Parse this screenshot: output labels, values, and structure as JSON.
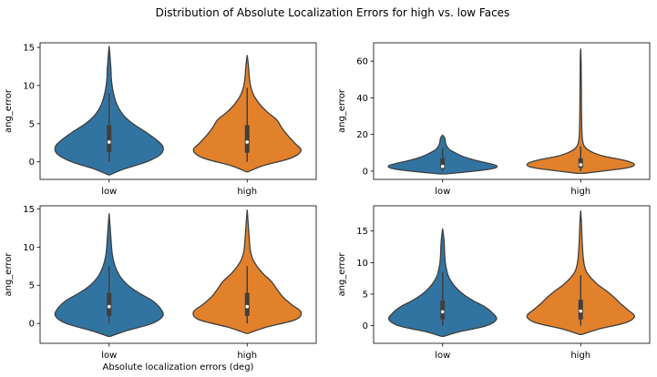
{
  "figure": {
    "suptitle": "Distribution of Absolute Localization Errors for high vs. low Faces"
  },
  "colors": {
    "low": "#3274a1",
    "high": "#e1812c",
    "edge": "#3f3f3f",
    "box": "#3f3f3f",
    "median": "#ffffff"
  },
  "chart_data": [
    {
      "type": "violin",
      "categories": [
        "low",
        "high"
      ],
      "xlabel": "",
      "ylabel": "ang_error",
      "ylim": [
        -2.3,
        15.6
      ],
      "yticks": [
        0,
        5,
        10,
        15
      ],
      "violins": [
        {
          "category": "low",
          "min": -1.7,
          "max": 15.0,
          "q1": 1.3,
          "median": 2.6,
          "q3": 4.8,
          "whisker_low": 0.0,
          "whisker_high": 9.0,
          "density": [
            [
              -1.7,
              0.02
            ],
            [
              -1.0,
              0.25
            ],
            [
              0.0,
              0.7
            ],
            [
              1.0,
              0.96
            ],
            [
              2.0,
              1.0
            ],
            [
              3.0,
              0.86
            ],
            [
              4.0,
              0.66
            ],
            [
              5.0,
              0.44
            ],
            [
              6.0,
              0.28
            ],
            [
              7.0,
              0.18
            ],
            [
              8.0,
              0.12
            ],
            [
              9.0,
              0.08
            ],
            [
              10.0,
              0.055
            ],
            [
              11.0,
              0.04
            ],
            [
              12.0,
              0.035
            ],
            [
              13.0,
              0.025
            ],
            [
              14.0,
              0.015
            ],
            [
              15.0,
              0.002
            ]
          ]
        },
        {
          "category": "high",
          "min": -1.3,
          "max": 13.8,
          "q1": 1.2,
          "median": 2.6,
          "q3": 4.8,
          "whisker_low": 0.0,
          "whisker_high": 9.7,
          "density": [
            [
              -1.3,
              0.02
            ],
            [
              -0.5,
              0.3
            ],
            [
              0.5,
              0.82
            ],
            [
              1.5,
              1.0
            ],
            [
              2.5,
              0.88
            ],
            [
              3.5,
              0.75
            ],
            [
              4.5,
              0.64
            ],
            [
              5.5,
              0.55
            ],
            [
              6.5,
              0.38
            ],
            [
              7.5,
              0.24
            ],
            [
              8.5,
              0.14
            ],
            [
              9.5,
              0.08
            ],
            [
              10.5,
              0.05
            ],
            [
              11.5,
              0.035
            ],
            [
              12.5,
              0.025
            ],
            [
              13.8,
              0.003
            ]
          ]
        }
      ]
    },
    {
      "type": "violin",
      "categories": [
        "low",
        "high"
      ],
      "xlabel": "",
      "ylabel": "ang_error",
      "ylim": [
        -4.5,
        70
      ],
      "yticks": [
        0,
        20,
        40,
        60
      ],
      "violins": [
        {
          "category": "low",
          "min": -1.5,
          "max": 19.5,
          "q1": 1.2,
          "median": 2.6,
          "q3": 7.0,
          "whisker_low": 0.0,
          "whisker_high": 13.0,
          "density": [
            [
              -1.5,
              0.05
            ],
            [
              0.0,
              0.6
            ],
            [
              1.5,
              0.95
            ],
            [
              3.0,
              1.0
            ],
            [
              4.5,
              0.82
            ],
            [
              6.0,
              0.6
            ],
            [
              7.5,
              0.42
            ],
            [
              9.0,
              0.3
            ],
            [
              10.5,
              0.2
            ],
            [
              12.0,
              0.12
            ],
            [
              14.0,
              0.07
            ],
            [
              16.0,
              0.05
            ],
            [
              18.0,
              0.04
            ],
            [
              19.5,
              0.005
            ]
          ]
        },
        {
          "category": "high",
          "min": -1.2,
          "max": 65.5,
          "q1": 1.8,
          "median": 3.5,
          "q3": 7.0,
          "whisker_low": 0.0,
          "whisker_high": 13.5,
          "density": [
            [
              -1.2,
              0.05
            ],
            [
              0.5,
              0.55
            ],
            [
              2.0,
              0.9
            ],
            [
              3.5,
              1.0
            ],
            [
              5.0,
              0.92
            ],
            [
              6.5,
              0.72
            ],
            [
              8.0,
              0.45
            ],
            [
              10.0,
              0.24
            ],
            [
              12.0,
              0.12
            ],
            [
              14.0,
              0.06
            ],
            [
              18.0,
              0.03
            ],
            [
              25.0,
              0.02
            ],
            [
              35.0,
              0.015
            ],
            [
              45.0,
              0.012
            ],
            [
              55.0,
              0.01
            ],
            [
              65.5,
              0.003
            ]
          ]
        }
      ]
    },
    {
      "type": "violin",
      "categories": [
        "low",
        "high"
      ],
      "xlabel": "Absolute localization errors (deg)",
      "ylabel": "ang_error",
      "ylim": [
        -2.6,
        15.4
      ],
      "yticks": [
        0,
        5,
        10,
        15
      ],
      "violins": [
        {
          "category": "low",
          "min": -1.7,
          "max": 14.2,
          "q1": 1.0,
          "median": 2.2,
          "q3": 4.0,
          "whisker_low": 0.0,
          "whisker_high": 7.5,
          "density": [
            [
              -1.7,
              0.02
            ],
            [
              -1.0,
              0.3
            ],
            [
              0.0,
              0.8
            ],
            [
              1.0,
              1.0
            ],
            [
              2.0,
              0.95
            ],
            [
              3.0,
              0.8
            ],
            [
              4.0,
              0.55
            ],
            [
              5.0,
              0.35
            ],
            [
              6.0,
              0.22
            ],
            [
              7.0,
              0.14
            ],
            [
              8.0,
              0.09
            ],
            [
              9.0,
              0.06
            ],
            [
              10.0,
              0.045
            ],
            [
              11.0,
              0.035
            ],
            [
              12.0,
              0.025
            ],
            [
              13.0,
              0.015
            ],
            [
              14.2,
              0.002
            ]
          ]
        },
        {
          "category": "high",
          "min": -1.3,
          "max": 14.7,
          "q1": 1.0,
          "median": 2.2,
          "q3": 4.0,
          "whisker_low": 0.0,
          "whisker_high": 7.5,
          "density": [
            [
              -1.3,
              0.02
            ],
            [
              -0.5,
              0.35
            ],
            [
              0.5,
              0.9
            ],
            [
              1.5,
              1.0
            ],
            [
              2.5,
              0.82
            ],
            [
              3.5,
              0.66
            ],
            [
              4.5,
              0.55
            ],
            [
              5.5,
              0.45
            ],
            [
              6.5,
              0.3
            ],
            [
              7.5,
              0.18
            ],
            [
              8.5,
              0.1
            ],
            [
              9.5,
              0.06
            ],
            [
              10.5,
              0.045
            ],
            [
              11.5,
              0.035
            ],
            [
              12.5,
              0.025
            ],
            [
              13.5,
              0.015
            ],
            [
              14.7,
              0.002
            ]
          ]
        }
      ]
    },
    {
      "type": "violin",
      "categories": [
        "low",
        "high"
      ],
      "xlabel": "",
      "ylabel": "ang_error",
      "ylim": [
        -2.8,
        19.0
      ],
      "yticks": [
        0,
        5,
        10,
        15
      ],
      "violins": [
        {
          "category": "low",
          "min": -1.7,
          "max": 15.2,
          "q1": 1.0,
          "median": 2.2,
          "q3": 4.0,
          "whisker_low": 0.0,
          "whisker_high": 8.5,
          "density": [
            [
              -1.7,
              0.02
            ],
            [
              -1.0,
              0.3
            ],
            [
              0.0,
              0.82
            ],
            [
              1.0,
              1.0
            ],
            [
              2.0,
              0.93
            ],
            [
              3.0,
              0.78
            ],
            [
              4.0,
              0.56
            ],
            [
              5.0,
              0.38
            ],
            [
              6.0,
              0.25
            ],
            [
              7.0,
              0.16
            ],
            [
              8.0,
              0.1
            ],
            [
              9.0,
              0.07
            ],
            [
              10.0,
              0.05
            ],
            [
              11.0,
              0.04
            ],
            [
              12.0,
              0.035
            ],
            [
              13.0,
              0.03
            ],
            [
              14.0,
              0.02
            ],
            [
              15.2,
              0.002
            ]
          ]
        },
        {
          "category": "high",
          "min": -1.4,
          "max": 18.0,
          "q1": 1.0,
          "median": 2.3,
          "q3": 4.1,
          "whisker_low": 0.0,
          "whisker_high": 8.0,
          "density": [
            [
              -1.4,
              0.02
            ],
            [
              -0.5,
              0.35
            ],
            [
              0.5,
              0.85
            ],
            [
              1.5,
              1.0
            ],
            [
              2.5,
              0.88
            ],
            [
              3.5,
              0.74
            ],
            [
              4.5,
              0.62
            ],
            [
              5.5,
              0.48
            ],
            [
              6.5,
              0.32
            ],
            [
              7.5,
              0.2
            ],
            [
              8.5,
              0.11
            ],
            [
              9.5,
              0.07
            ],
            [
              11.0,
              0.045
            ],
            [
              13.0,
              0.03
            ],
            [
              15.0,
              0.02
            ],
            [
              16.5,
              0.012
            ],
            [
              18.0,
              0.002
            ]
          ]
        }
      ]
    }
  ]
}
